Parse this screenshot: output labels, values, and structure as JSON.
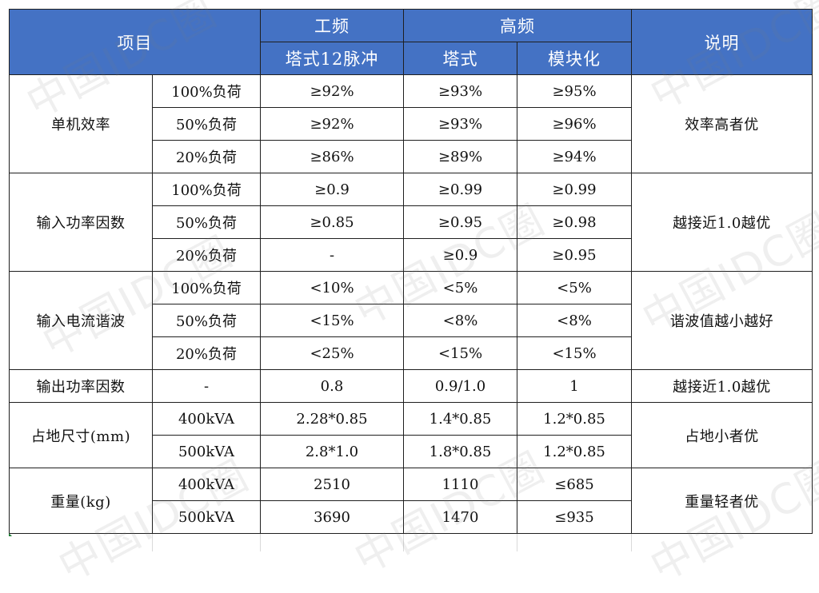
{
  "table": {
    "header": {
      "item": "项目",
      "group_power_freq": "工频",
      "group_high_freq": "高频",
      "note": "说明",
      "sub_tower_12pulse": "塔式12脉冲",
      "sub_tower": "塔式",
      "sub_modular": "模块化"
    },
    "rows": [
      {
        "item": "单机效率",
        "cond": "100%负荷",
        "v1": "≥92%",
        "v2": "≥93%",
        "v3": "≥95%",
        "note": "效率高者优"
      },
      {
        "cond": "50%负荷",
        "v1": "≥92%",
        "v2": "≥93%",
        "v3": "≥96%"
      },
      {
        "cond": "20%负荷",
        "v1": "≥86%",
        "v2": "≥89%",
        "v3": "≥94%"
      },
      {
        "item": "输入功率因数",
        "cond": "100%负荷",
        "v1": "≥0.9",
        "v2": "≥0.99",
        "v3": "≥0.99",
        "note": "越接近1.0越优"
      },
      {
        "cond": "50%负荷",
        "v1": "≥0.85",
        "v2": "≥0.95",
        "v3": "≥0.98"
      },
      {
        "cond": "20%负荷",
        "v1": "-",
        "v2": "≥0.9",
        "v3": "≥0.95"
      },
      {
        "item": "输入电流谐波",
        "cond": "100%负荷",
        "v1": "<10%",
        "v2": "<5%",
        "v3": "<5%",
        "note": "谐波值越小越好"
      },
      {
        "cond": "50%负荷",
        "v1": "<15%",
        "v2": "<8%",
        "v3": "<8%"
      },
      {
        "cond": "20%负荷",
        "v1": "<25%",
        "v2": "<15%",
        "v3": "<15%"
      },
      {
        "item": "输出功率因数",
        "cond": "-",
        "v1": "0.8",
        "v2": "0.9/1.0",
        "v3": "1",
        "note": "越接近1.0越优"
      },
      {
        "item": "占地尺寸(mm)",
        "cond": "400kVA",
        "v1": "2.28*0.85",
        "v2": "1.4*0.85",
        "v3": "1.2*0.85",
        "note": "占地小者优"
      },
      {
        "cond": "500kVA",
        "v1": "2.8*1.0",
        "v2": "1.8*0.85",
        "v3": "1.2*0.85"
      },
      {
        "item": "重量(kg)",
        "cond": "400kVA",
        "v1": "2510",
        "v2": "1110",
        "v3": "≤685",
        "note": "重量轻者优"
      },
      {
        "cond": "500kVA",
        "v1": "3690",
        "v2": "1470",
        "v3": "≤935"
      }
    ]
  },
  "watermark": "中国IDC圈"
}
